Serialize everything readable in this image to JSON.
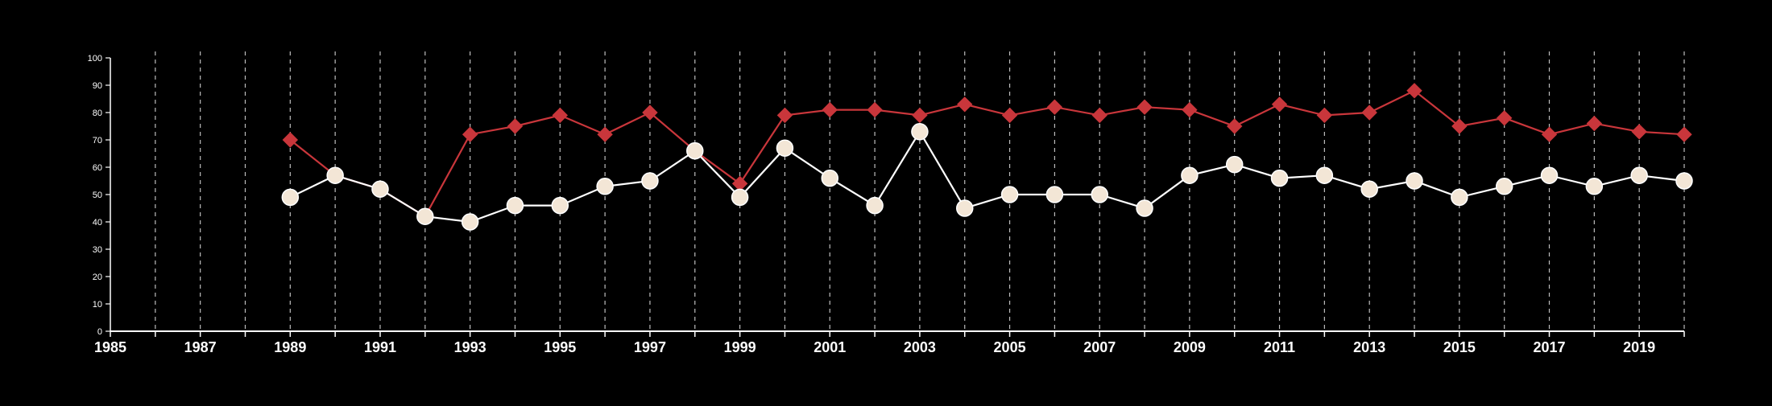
{
  "chart_data": {
    "type": "line",
    "title": "",
    "xlabel": "",
    "ylabel": "",
    "xlim": [
      1985,
      2020
    ],
    "ylim": [
      0,
      100
    ],
    "y_ticks": [
      0,
      10,
      20,
      30,
      40,
      50,
      60,
      70,
      80,
      90,
      100
    ],
    "x_ticks": [
      1985,
      1987,
      1989,
      1991,
      1993,
      1995,
      1997,
      1999,
      2001,
      2003,
      2005,
      2007,
      2009,
      2011,
      2013,
      2015,
      2017,
      2019
    ],
    "grid": "vertical dashed lines at every year",
    "background": "#000000",
    "series": [
      {
        "color": "#c9363b",
        "marker": "diamond",
        "x": [
          1989,
          1990,
          1991,
          1992,
          1993,
          1994,
          1995,
          1996,
          1997,
          1998,
          1999,
          2000,
          2001,
          2002,
          2003,
          2004,
          2005,
          2006,
          2007,
          2008,
          2009,
          2010,
          2011,
          2012,
          2013,
          2014,
          2015,
          2016,
          2017,
          2018,
          2019,
          2020
        ],
        "values": [
          70,
          57,
          52,
          42,
          72,
          75,
          79,
          72,
          80,
          66,
          54,
          79,
          81,
          81,
          79,
          83,
          79,
          82,
          79,
          82,
          81,
          75,
          83,
          79,
          80,
          88,
          75,
          78,
          72,
          76,
          73,
          72
        ]
      },
      {
        "color": "#ffffff",
        "marker_fill": "#f3e6d6",
        "marker": "circle",
        "x": [
          1989,
          1990,
          1991,
          1992,
          1993,
          1994,
          1995,
          1996,
          1997,
          1998,
          1999,
          2000,
          2001,
          2002,
          2003,
          2004,
          2005,
          2006,
          2007,
          2008,
          2009,
          2010,
          2011,
          2012,
          2013,
          2014,
          2015,
          2016,
          2017,
          2018,
          2019,
          2020
        ],
        "values": [
          49,
          57,
          52,
          42,
          40,
          46,
          46,
          53,
          55,
          66,
          49,
          67,
          56,
          46,
          73,
          45,
          50,
          50,
          50,
          45,
          57,
          61,
          56,
          57,
          52,
          55,
          49,
          53,
          57,
          53,
          57,
          55
        ]
      }
    ]
  }
}
